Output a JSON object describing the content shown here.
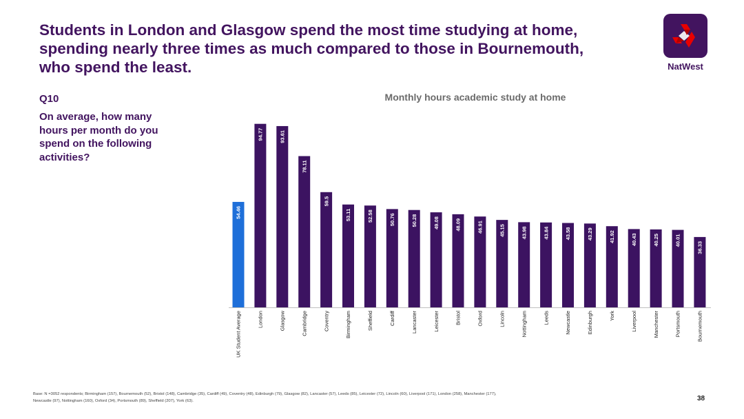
{
  "slide": {
    "headline": "Students in London and Glasgow spend the most time studying at home, spending nearly three times as much compared to those in Bournemouth, who spend the least.",
    "question_number": "Q10",
    "question_text": "On average, how many hours per month do you spend on the following activities?",
    "brand_name": "NatWest",
    "base_note": "Base: N =3052 respondents; Birmingham (157), Bournemouth (52), Bristol (148), Cambridge (35), Cardiff (49), Coventry (48), Edinburgh (79), Glasgow (82), Lancaster (57), Leeds (85), Leicester (72), Lincoln (60), Liverpool (171), London (258), Manchester (177), Newcastle (97), Nottingham (160), Oxford (34), Portsmouth (89), Sheffield (207), York (63).",
    "page_number": "38"
  },
  "colors": {
    "brand_purple": "#42145f",
    "bar_purple": "#3c1361",
    "highlight_blue": "#1e6fd9",
    "logo_red": "#e90000"
  },
  "chart_data": {
    "type": "bar",
    "title": "Monthly hours academic study at home",
    "categories": [
      "UK Student Average",
      "London",
      "Glasgow",
      "Cambridge",
      "Coventry",
      "Birmingham",
      "Sheffield",
      "Cardiff",
      "Lancaster",
      "Leicester",
      "Bristol",
      "Oxford",
      "Lincoln",
      "Nottingham",
      "Leeds",
      "Newcastle",
      "Edinburgh",
      "York",
      "Liverpool",
      "Manchester",
      "Portsmouth",
      "Bournemouth"
    ],
    "values": [
      54.46,
      94.77,
      93.61,
      78.11,
      59.5,
      53.11,
      52.58,
      50.76,
      50.28,
      49.08,
      48.09,
      46.91,
      45.15,
      43.98,
      43.84,
      43.58,
      43.29,
      41.92,
      40.43,
      40.25,
      40.01,
      36.33
    ],
    "value_labels": [
      "54.46",
      "94.77",
      "93.61",
      "78.11",
      "59.5",
      "53.11",
      "52.58",
      "50.76",
      "50.28",
      "49.08",
      "48.09",
      "46.91",
      "45.15",
      "43.98",
      "43.84",
      "43.58",
      "43.29",
      "41.92",
      "40.43",
      "40.25",
      "40.01",
      "36.33"
    ],
    "highlight_index": 0,
    "ylim": [
      0,
      100
    ],
    "xlabel": "",
    "ylabel": "",
    "grid": false,
    "legend": "none"
  }
}
